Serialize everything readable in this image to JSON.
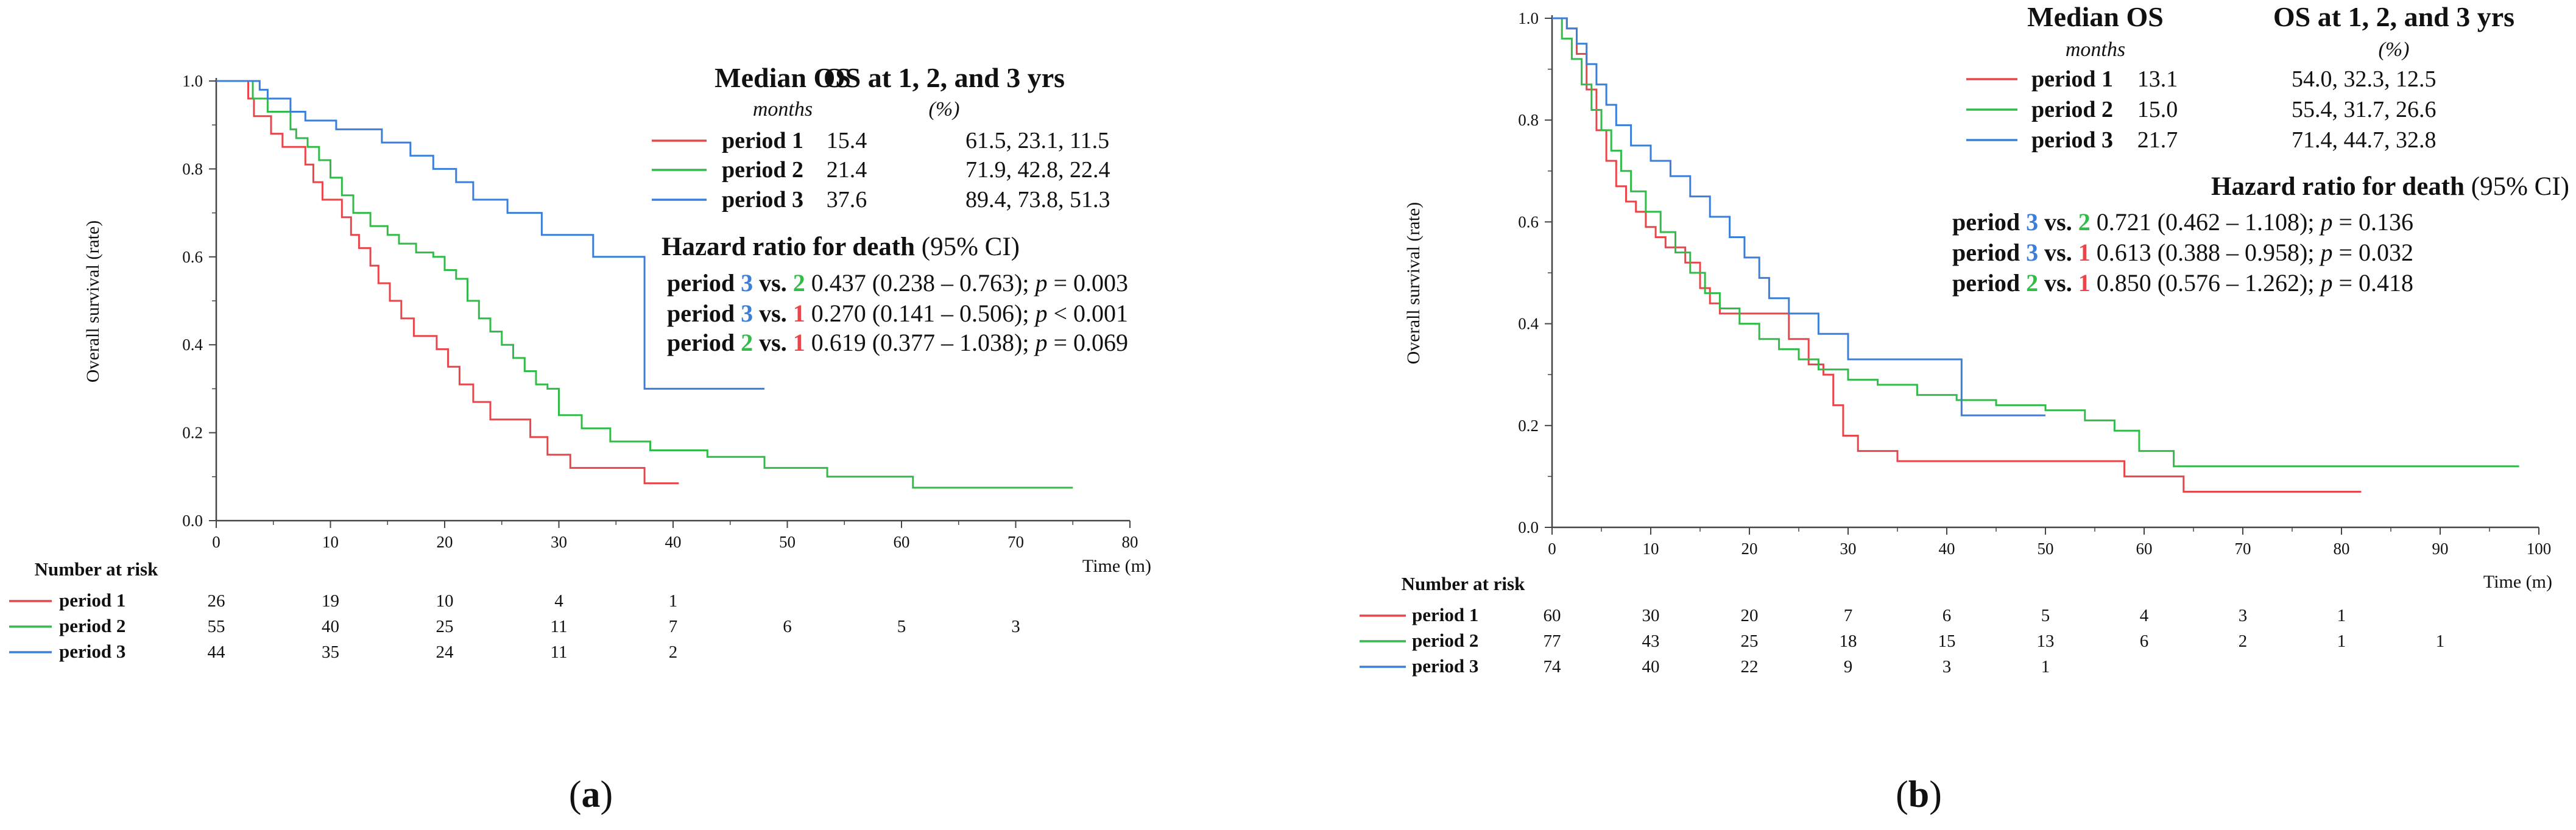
{
  "colors": {
    "period1": "#e8464b",
    "period2": "#33bb4a",
    "period3": "#3b7fd9",
    "axis": "#444444"
  },
  "panels": [
    {
      "caption_letter": "a",
      "chart_data": {
        "type": "line",
        "xlabel": "Time (m)",
        "ylabel": "Overall survival (rate)",
        "xlim": [
          0,
          80
        ],
        "ylim": [
          0,
          1
        ],
        "xticks": [
          "0",
          "10",
          "20",
          "30",
          "40",
          "50",
          "60",
          "70",
          "80"
        ],
        "yticks": [
          "0.0",
          "0.2",
          "0.4",
          "0.6",
          "0.8",
          "1.0"
        ],
        "series": [
          {
            "name": "period 1",
            "color_key": "period1",
            "x": [
              0,
              2.2,
              2.8,
              3.3,
              4.8,
              5.8,
              6.8,
              7.8,
              8.5,
              9.3,
              10.2,
              11.0,
              11.8,
              12.5,
              13.5,
              14.2,
              15.2,
              16.2,
              17.3,
              18.2,
              19.3,
              20.3,
              21.3,
              22.5,
              24.0,
              25.2,
              27.5,
              29.0,
              31.0,
              32.5,
              34.5,
              37.5,
              40.5
            ],
            "y": [
              1.0,
              1.0,
              0.96,
              0.92,
              0.88,
              0.85,
              0.85,
              0.81,
              0.77,
              0.73,
              0.73,
              0.69,
              0.65,
              0.62,
              0.58,
              0.54,
              0.5,
              0.46,
              0.42,
              0.42,
              0.39,
              0.35,
              0.31,
              0.27,
              0.23,
              0.23,
              0.19,
              0.15,
              0.12,
              0.12,
              0.12,
              0.085,
              0.085
            ]
          },
          {
            "name": "period 2",
            "color_key": "period2",
            "x": [
              0,
              2.5,
              3.2,
              4.5,
              5.5,
              6.5,
              7.0,
              8.0,
              9.0,
              10.0,
              11.0,
              12.0,
              13.5,
              15.0,
              16.0,
              17.5,
              19.0,
              20.0,
              21.0,
              22.0,
              23.0,
              24.0,
              25.0,
              26.0,
              27.0,
              28.0,
              29.0,
              30.0,
              32.0,
              34.5,
              38.0,
              43.0,
              48.0,
              53.5,
              57.5,
              61.0,
              68.0,
              75.0
            ],
            "y": [
              1.0,
              1.0,
              0.96,
              0.93,
              0.93,
              0.89,
              0.87,
              0.85,
              0.82,
              0.78,
              0.74,
              0.7,
              0.67,
              0.65,
              0.63,
              0.61,
              0.6,
              0.57,
              0.55,
              0.5,
              0.46,
              0.43,
              0.4,
              0.37,
              0.34,
              0.31,
              0.3,
              0.24,
              0.21,
              0.18,
              0.16,
              0.145,
              0.12,
              0.1,
              0.1,
              0.075,
              0.075,
              0.075
            ]
          },
          {
            "name": "period 3",
            "color_key": "period3",
            "x": [
              0,
              3.2,
              3.8,
              4.5,
              5.5,
              6.5,
              7.8,
              10.5,
              12.0,
              14.5,
              17.0,
              19.0,
              21.0,
              22.5,
              25.5,
              28.5,
              30.5,
              33.0,
              37.5,
              41.0,
              48.0
            ],
            "y": [
              1.0,
              1.0,
              0.98,
              0.96,
              0.96,
              0.93,
              0.91,
              0.89,
              0.89,
              0.86,
              0.83,
              0.8,
              0.77,
              0.73,
              0.7,
              0.65,
              0.65,
              0.6,
              0.3,
              0.3,
              0.3
            ]
          }
        ],
        "legend": {
          "header_median": "Median OS",
          "header_median_sub": "months",
          "header_os": "OS at 1, 2, and 3 yrs",
          "header_os_sub": "(%)",
          "rows": [
            {
              "name": "period 1",
              "color_key": "period1",
              "median": "15.4",
              "os": "61.5, 23.1, 11.5"
            },
            {
              "name": "period 2",
              "color_key": "period2",
              "median": "21.4",
              "os": "71.9, 42.8, 22.4"
            },
            {
              "name": "period 3",
              "color_key": "period3",
              "median": "37.6",
              "os": "89.4, 73.8, 51.3"
            }
          ]
        },
        "hazard": {
          "title_bold": "Hazard ratio for death",
          "title_rest": " (95% CI)",
          "rows": [
            {
              "lhs": "period ",
              "a": "3",
              "a_color": "period3",
              "vs": " vs. ",
              "b": "2",
              "b_color": "period2",
              "stats": " 0.437 (0.238 – 0.763); ",
              "p": "p",
              "p_rest": " = 0.003"
            },
            {
              "lhs": "period ",
              "a": "3",
              "a_color": "period3",
              "vs": " vs. ",
              "b": "1",
              "b_color": "period1",
              "stats": " 0.270 (0.141 – 0.506); ",
              "p": "p",
              "p_rest": " < 0.001"
            },
            {
              "lhs": "period ",
              "a": "2",
              "a_color": "period2",
              "vs": " vs. ",
              "b": "1",
              "b_color": "period1",
              "stats": " 0.619 (0.377 – 1.038); ",
              "p": "p",
              "p_rest": " = 0.069"
            }
          ]
        },
        "risk_table": {
          "title": "Number at risk",
          "rows": [
            {
              "name": "period 1",
              "color_key": "period1",
              "values": [
                "26",
                "19",
                "10",
                "4",
                "1"
              ]
            },
            {
              "name": "period 2",
              "color_key": "period2",
              "values": [
                "55",
                "40",
                "25",
                "11",
                "7",
                "6",
                "5",
                "3"
              ]
            },
            {
              "name": "period 3",
              "color_key": "period3",
              "values": [
                "44",
                "35",
                "24",
                "11",
                "2"
              ]
            }
          ]
        }
      }
    },
    {
      "caption_letter": "b",
      "chart_data": {
        "type": "line",
        "xlabel": "Time (m)",
        "ylabel": "Overall survival (rate)",
        "xlim": [
          0,
          100
        ],
        "ylim": [
          0,
          1
        ],
        "xticks": [
          "0",
          "10",
          "20",
          "30",
          "40",
          "50",
          "60",
          "70",
          "80",
          "90",
          "100"
        ],
        "yticks": [
          "0.0",
          "0.2",
          "0.4",
          "0.6",
          "0.8",
          "1.0"
        ],
        "series": [
          {
            "name": "period 1",
            "color_key": "period1",
            "x": [
              0,
              1.5,
              2.5,
              3.5,
              4.5,
              5.5,
              6.5,
              7.5,
              8.5,
              9.5,
              10.5,
              11.5,
              13.5,
              15.0,
              16.0,
              17.0,
              18.5,
              20.0,
              22.0,
              24.0,
              26.0,
              27.5,
              28.5,
              29.5,
              31.0,
              35.0,
              45.0,
              57.0,
              58.0,
              62.0,
              64.0,
              70.0,
              82.0
            ],
            "y": [
              1.0,
              0.98,
              0.93,
              0.86,
              0.78,
              0.72,
              0.67,
              0.64,
              0.62,
              0.59,
              0.57,
              0.55,
              0.52,
              0.47,
              0.44,
              0.42,
              0.42,
              0.42,
              0.42,
              0.37,
              0.32,
              0.3,
              0.24,
              0.18,
              0.15,
              0.13,
              0.13,
              0.13,
              0.1,
              0.1,
              0.07,
              0.07,
              0.07
            ]
          },
          {
            "name": "period 2",
            "color_key": "period2",
            "x": [
              0,
              1.0,
              2.0,
              3.0,
              4.0,
              5.0,
              6.0,
              7.0,
              8.0,
              9.5,
              11.0,
              12.5,
              14.0,
              15.5,
              17.0,
              19.0,
              21.0,
              23.0,
              25.0,
              27.0,
              30.0,
              33.0,
              37.0,
              41.0,
              45.0,
              50.0,
              54.0,
              57.0,
              59.5,
              63.0,
              98.0
            ],
            "y": [
              1.0,
              0.96,
              0.92,
              0.87,
              0.82,
              0.78,
              0.74,
              0.7,
              0.66,
              0.62,
              0.58,
              0.54,
              0.5,
              0.46,
              0.43,
              0.4,
              0.37,
              0.35,
              0.33,
              0.31,
              0.29,
              0.28,
              0.26,
              0.25,
              0.24,
              0.23,
              0.21,
              0.19,
              0.15,
              0.12,
              0.12
            ]
          },
          {
            "name": "period 3",
            "color_key": "period3",
            "x": [
              0,
              1.5,
              2.5,
              3.5,
              4.5,
              5.5,
              6.5,
              8.0,
              10.0,
              12.0,
              14.0,
              16.0,
              18.0,
              19.5,
              21.0,
              22.0,
              24.0,
              27.0,
              30.0,
              33.0,
              37.0,
              40.5,
              41.5,
              45.0,
              50.0
            ],
            "y": [
              1.0,
              0.98,
              0.95,
              0.91,
              0.87,
              0.83,
              0.79,
              0.75,
              0.72,
              0.69,
              0.65,
              0.61,
              0.57,
              0.53,
              0.49,
              0.45,
              0.42,
              0.38,
              0.33,
              0.33,
              0.33,
              0.33,
              0.22,
              0.22,
              0.22
            ]
          }
        ],
        "legend": {
          "header_median": "Median OS",
          "header_median_sub": "months",
          "header_os": "OS at 1, 2, and 3 yrs",
          "header_os_sub": "(%)",
          "rows": [
            {
              "name": "period 1",
              "color_key": "period1",
              "median": "13.1",
              "os": "54.0, 32.3, 12.5"
            },
            {
              "name": "period 2",
              "color_key": "period2",
              "median": "15.0",
              "os": "55.4, 31.7, 26.6"
            },
            {
              "name": "period 3",
              "color_key": "period3",
              "median": "21.7",
              "os": "71.4, 44.7, 32.8"
            }
          ]
        },
        "hazard": {
          "title_bold": "Hazard ratio for death",
          "title_rest": " (95% CI)",
          "rows": [
            {
              "lhs": "period ",
              "a": "3",
              "a_color": "period3",
              "vs": " vs. ",
              "b": "2",
              "b_color": "period2",
              "stats": " 0.721 (0.462 – 1.108); ",
              "p": "p",
              "p_rest": " = 0.136"
            },
            {
              "lhs": "period ",
              "a": "3",
              "a_color": "period3",
              "vs": " vs. ",
              "b": "1",
              "b_color": "period1",
              "stats": " 0.613 (0.388 – 0.958); ",
              "p": "p",
              "p_rest": " = 0.032"
            },
            {
              "lhs": "period ",
              "a": "2",
              "a_color": "period2",
              "vs": " vs. ",
              "b": "1",
              "b_color": "period1",
              "stats": " 0.850 (0.576 – 1.262); ",
              "p": "p",
              "p_rest": " = 0.418"
            }
          ]
        },
        "risk_table": {
          "title": "Number at risk",
          "rows": [
            {
              "name": "period 1",
              "color_key": "period1",
              "values": [
                "60",
                "30",
                "20",
                "7",
                "6",
                "5",
                "4",
                "3",
                "1"
              ]
            },
            {
              "name": "period 2",
              "color_key": "period2",
              "values": [
                "77",
                "43",
                "25",
                "18",
                "15",
                "13",
                "6",
                "2",
                "1",
                "1"
              ]
            },
            {
              "name": "period 3",
              "color_key": "period3",
              "values": [
                "74",
                "40",
                "22",
                "9",
                "3",
                "1"
              ]
            }
          ]
        }
      }
    }
  ]
}
